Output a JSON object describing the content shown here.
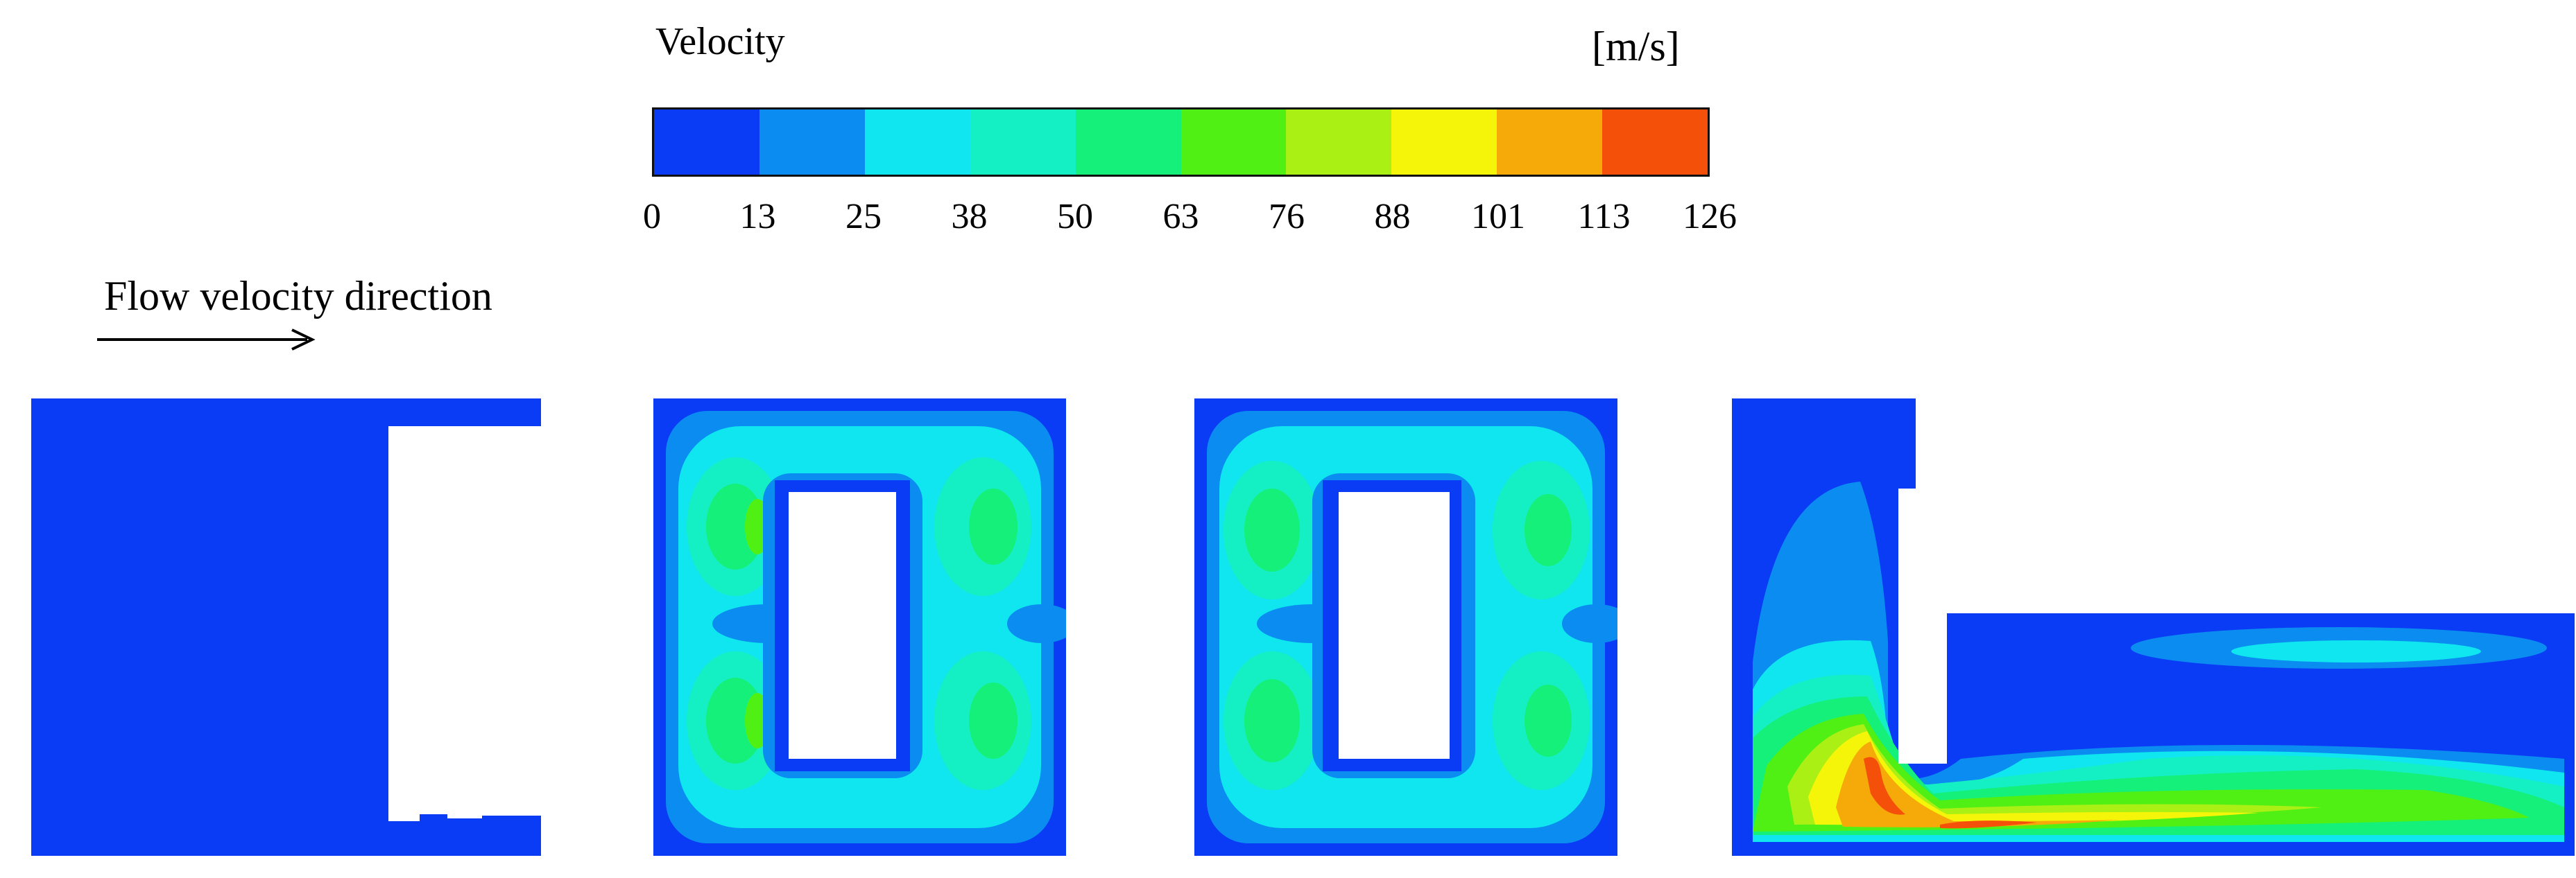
{
  "legend": {
    "title": "Velocity",
    "unit": "[m/s]",
    "ticks": [
      "0",
      "13",
      "25",
      "38",
      "50",
      "63",
      "76",
      "88",
      "101",
      "113",
      "126"
    ],
    "colors": [
      "#0b3cf5",
      "#0a8cf0",
      "#0fe6f0",
      "#14f0c3",
      "#14f07a",
      "#50f014",
      "#aaf014",
      "#f5f50a",
      "#f5aa0a",
      "#f5500a"
    ]
  },
  "flow": {
    "label": "Flow velocity direction",
    "arrow_icon": "right-arrow-icon"
  },
  "panels": [
    {
      "name": "panel-1",
      "description_icon": "velocity-contour"
    },
    {
      "name": "panel-2",
      "description_icon": "velocity-contour"
    },
    {
      "name": "panel-3",
      "description_icon": "velocity-contour"
    },
    {
      "name": "panel-4",
      "description_icon": "velocity-contour"
    }
  ]
}
